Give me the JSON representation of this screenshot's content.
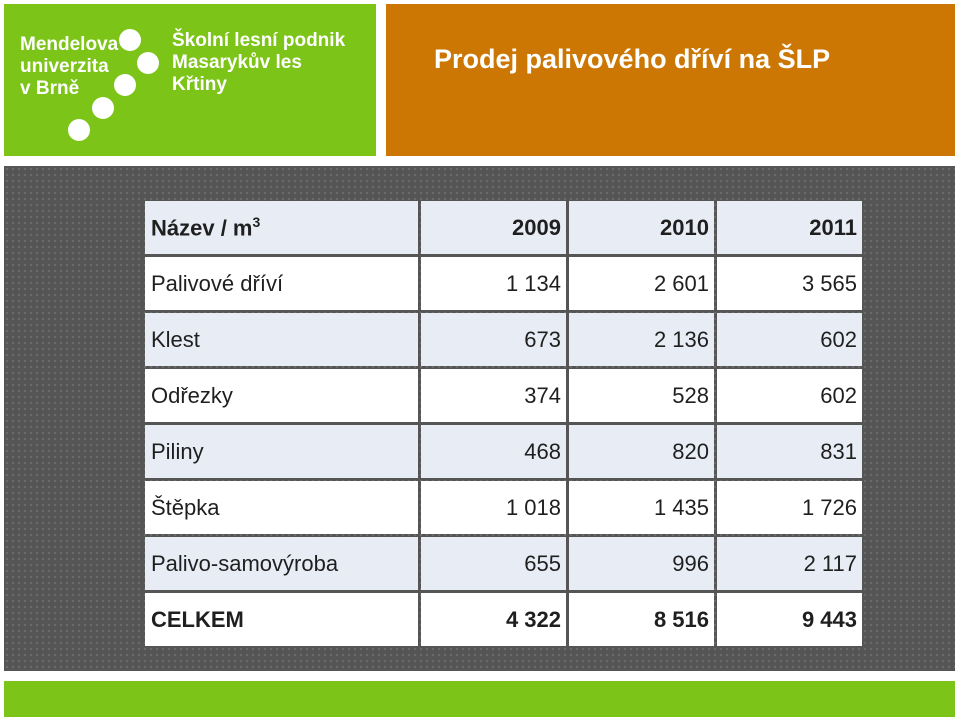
{
  "logo": {
    "university_lines": [
      "Mendelova",
      "univerzita",
      "v Brně"
    ],
    "forest_lines": [
      "Školní lesní podnik",
      "Masarykův les",
      "Křtiny"
    ]
  },
  "title": "Prodej palivového dříví na ŠLP",
  "table": {
    "header": {
      "name": "Název / m",
      "superscript": "3",
      "years": [
        "2009",
        "2010",
        "2011"
      ]
    },
    "rows": [
      {
        "name": "Palivové dříví",
        "values": [
          "1 134",
          "2 601",
          "3 565"
        ]
      },
      {
        "name": "Klest",
        "values": [
          "673",
          "2 136",
          "602"
        ]
      },
      {
        "name": "Odřezky",
        "values": [
          "374",
          "528",
          "602"
        ]
      },
      {
        "name": "Piliny",
        "values": [
          "468",
          "820",
          "831"
        ]
      },
      {
        "name": "Štěpka",
        "values": [
          "1 018",
          "1 435",
          "1 726"
        ]
      },
      {
        "name": "Palivo-samovýroba",
        "values": [
          "655",
          "996",
          "2 117"
        ]
      }
    ],
    "total": {
      "name": "CELKEM",
      "values": [
        "4 322",
        "8 516",
        "9 443"
      ]
    }
  },
  "colors": {
    "logo_green": "#7cc418",
    "title_orange": "#cc7703",
    "panel_gray": "#555555"
  }
}
